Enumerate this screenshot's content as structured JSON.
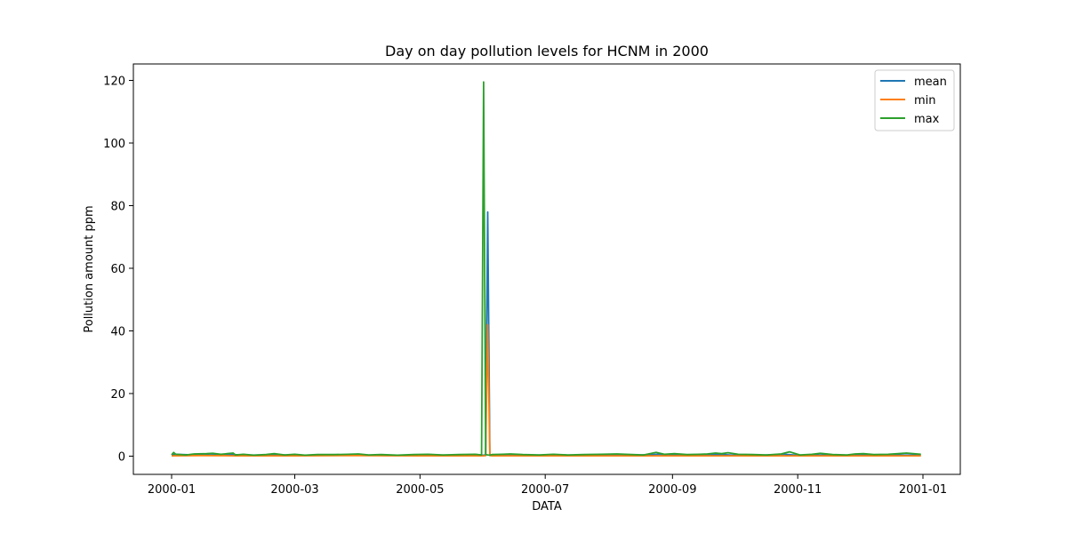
{
  "chart_data": {
    "type": "line",
    "title": "Day on day pollution levels for HCNM in 2000",
    "xlabel": "DATA",
    "ylabel": "Pollution amount ppm",
    "x_range": [
      "2000-01-01",
      "2001-01-01"
    ],
    "ylim": [
      -6,
      126
    ],
    "x_tick_labels": [
      "2000-01",
      "2000-03",
      "2000-05",
      "2000-07",
      "2000-09",
      "2000-11",
      "2001-01"
    ],
    "x_tick_dates": [
      "2000-01-01",
      "2000-03-01",
      "2000-05-01",
      "2000-07-01",
      "2000-09-01",
      "2000-11-01",
      "2001-01-01"
    ],
    "y_ticks": [
      0,
      20,
      40,
      60,
      80,
      100,
      120
    ],
    "grid": false,
    "legend_position": "top-right",
    "series": [
      {
        "name": "mean",
        "color": "#1f77b4",
        "x": [
          "2000-01-01",
          "2000-01-03",
          "2000-01-15",
          "2000-01-20",
          "2000-01-31",
          "2000-02-05",
          "2000-02-20",
          "2000-03-05",
          "2000-03-20",
          "2000-04-01",
          "2000-04-15",
          "2000-05-01",
          "2000-05-15",
          "2000-05-30",
          "2000-06-01",
          "2000-06-02",
          "2000-06-03",
          "2000-06-04",
          "2000-06-05",
          "2000-06-15",
          "2000-07-01",
          "2000-07-15",
          "2000-08-01",
          "2000-08-15",
          "2000-08-25",
          "2000-09-01",
          "2000-09-15",
          "2000-09-25",
          "2000-10-01",
          "2000-10-15",
          "2000-10-25",
          "2000-11-01",
          "2000-11-15",
          "2000-12-01",
          "2000-12-15",
          "2000-12-31"
        ],
        "values": [
          0.3,
          0.6,
          0.3,
          0.4,
          0.5,
          0.3,
          0.4,
          0.3,
          0.3,
          0.4,
          0.2,
          0.3,
          0.3,
          0.3,
          0.3,
          0.4,
          78.0,
          0.4,
          0.3,
          0.4,
          0.3,
          0.3,
          0.3,
          0.3,
          0.6,
          0.4,
          0.4,
          0.5,
          0.3,
          0.3,
          0.6,
          0.3,
          0.3,
          0.3,
          0.3,
          0.4
        ]
      },
      {
        "name": "min",
        "color": "#ff7f0e",
        "x": [
          "2000-01-01",
          "2000-01-15",
          "2000-02-01",
          "2000-03-01",
          "2000-04-01",
          "2000-05-01",
          "2000-05-30",
          "2000-06-01",
          "2000-06-02",
          "2000-06-03",
          "2000-06-04",
          "2000-06-05",
          "2000-07-01",
          "2000-08-01",
          "2000-09-01",
          "2000-10-01",
          "2000-11-01",
          "2000-12-01",
          "2000-12-31"
        ],
        "values": [
          0.1,
          0.2,
          0.1,
          0.1,
          0.2,
          0.1,
          0.1,
          0.1,
          0.2,
          42.0,
          0.2,
          0.1,
          0.1,
          0.1,
          0.1,
          0.1,
          0.1,
          0.1,
          0.1
        ]
      },
      {
        "name": "max",
        "color": "#2ca02c",
        "x": [
          "2000-01-01",
          "2000-01-02",
          "2000-01-03",
          "2000-01-08",
          "2000-01-12",
          "2000-01-18",
          "2000-01-21",
          "2000-01-25",
          "2000-01-31",
          "2000-02-01",
          "2000-02-05",
          "2000-02-10",
          "2000-02-16",
          "2000-02-20",
          "2000-02-25",
          "2000-03-01",
          "2000-03-06",
          "2000-03-12",
          "2000-03-20",
          "2000-03-27",
          "2000-04-01",
          "2000-04-06",
          "2000-04-12",
          "2000-04-20",
          "2000-04-28",
          "2000-05-05",
          "2000-05-12",
          "2000-05-20",
          "2000-05-28",
          "2000-05-31",
          "2000-06-01",
          "2000-06-02",
          "2000-06-03",
          "2000-06-04",
          "2000-06-05",
          "2000-06-10",
          "2000-06-14",
          "2000-06-20",
          "2000-06-28",
          "2000-07-05",
          "2000-07-12",
          "2000-07-20",
          "2000-07-28",
          "2000-08-05",
          "2000-08-12",
          "2000-08-18",
          "2000-08-24",
          "2000-08-28",
          "2000-09-02",
          "2000-09-08",
          "2000-09-14",
          "2000-09-18",
          "2000-09-22",
          "2000-09-25",
          "2000-09-28",
          "2000-10-03",
          "2000-10-10",
          "2000-10-17",
          "2000-10-24",
          "2000-10-28",
          "2000-11-02",
          "2000-11-08",
          "2000-11-12",
          "2000-11-18",
          "2000-11-25",
          "2000-11-29",
          "2000-12-03",
          "2000-12-08",
          "2000-12-15",
          "2000-12-20",
          "2000-12-24",
          "2000-12-31"
        ],
        "values": [
          0.4,
          1.2,
          0.6,
          0.4,
          0.7,
          0.8,
          0.9,
          0.6,
          1.0,
          0.4,
          0.6,
          0.3,
          0.5,
          0.8,
          0.4,
          0.6,
          0.3,
          0.5,
          0.5,
          0.6,
          0.7,
          0.4,
          0.5,
          0.3,
          0.5,
          0.6,
          0.4,
          0.5,
          0.6,
          0.4,
          119.5,
          0.5,
          0.4,
          0.3,
          0.5,
          0.6,
          0.7,
          0.5,
          0.4,
          0.6,
          0.4,
          0.5,
          0.6,
          0.7,
          0.5,
          0.4,
          1.2,
          0.6,
          0.8,
          0.5,
          0.6,
          0.7,
          1.0,
          0.8,
          1.1,
          0.6,
          0.5,
          0.4,
          0.7,
          1.4,
          0.4,
          0.6,
          0.9,
          0.5,
          0.4,
          0.7,
          0.8,
          0.5,
          0.6,
          0.8,
          1.0,
          0.6
        ]
      }
    ]
  }
}
